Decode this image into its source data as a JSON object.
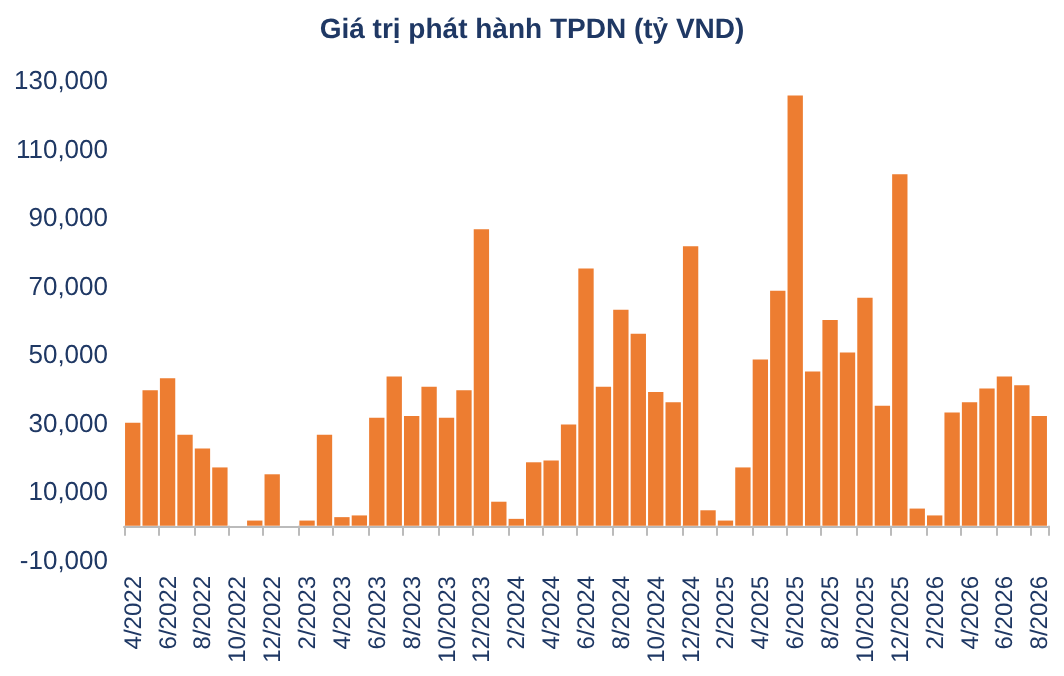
{
  "chart_data": {
    "type": "bar",
    "title": "Giá trị phát hành TPDN (tỷ VND)",
    "categories": [
      "4/2022",
      null,
      "6/2022",
      null,
      "8/2022",
      null,
      "10/2022",
      null,
      "12/2022",
      null,
      "2/2023",
      null,
      "4/2023",
      null,
      "6/2023",
      null,
      "8/2023",
      null,
      "10/2023",
      null,
      "12/2023",
      null,
      "2/2024",
      null,
      "4/2024",
      null,
      "6/2024",
      null,
      "8/2024",
      null,
      "10/2024",
      null,
      "12/2024",
      null,
      "2/2025",
      null,
      "4/2025",
      null,
      "6/2025",
      null,
      "8/2025",
      null,
      "10/2025",
      null,
      "12/2025",
      null,
      "2/2026",
      null,
      "4/2026",
      null,
      "6/2026",
      null,
      "8/2026"
    ],
    "values": [
      30000,
      39500,
      43000,
      26500,
      22500,
      17000,
      0,
      1500,
      15000,
      0,
      1500,
      26500,
      2500,
      3000,
      31500,
      43500,
      32000,
      40500,
      31500,
      39500,
      86500,
      7000,
      2000,
      18500,
      19000,
      29500,
      75000,
      40500,
      63000,
      56000,
      39000,
      36000,
      81500,
      4500,
      1500,
      17000,
      48500,
      68500,
      125500,
      45000,
      60000,
      50500,
      66500,
      35000,
      102500,
      5000,
      3000,
      33000,
      36000,
      40000,
      43500,
      41000,
      32000
    ],
    "color": "#ed7d31",
    "ylim": [
      -10000,
      130000
    ],
    "yticks": [
      {
        "value": -10000,
        "label": "-10,000"
      },
      {
        "value": 10000,
        "label": "10,000"
      },
      {
        "value": 30000,
        "label": "30,000"
      },
      {
        "value": 50000,
        "label": "50,000"
      },
      {
        "value": 70000,
        "label": "70,000"
      },
      {
        "value": 90000,
        "label": "90,000"
      },
      {
        "value": 110000,
        "label": "110,000"
      },
      {
        "value": 130000,
        "label": "130,000"
      }
    ],
    "grid": false
  }
}
